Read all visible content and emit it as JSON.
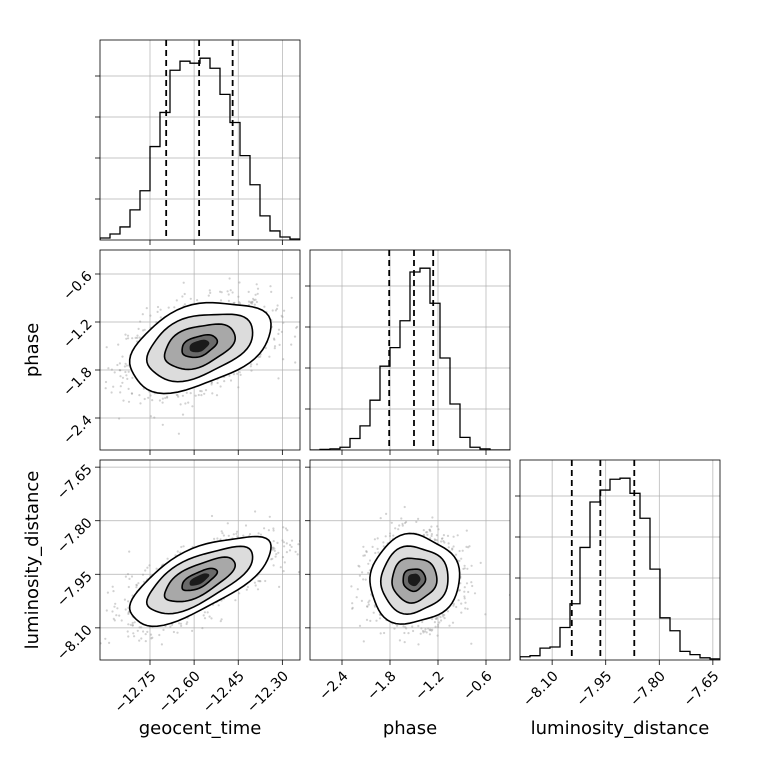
{
  "chart_data": {
    "type": "corner",
    "parameters": [
      "geocent_time",
      "phase",
      "luminosity_distance"
    ],
    "axis_labels": {
      "geocent_time": "geocent_time",
      "phase": "phase",
      "luminosity_distance": "luminosity_distance"
    },
    "ranges": {
      "geocent_time": [
        -12.92,
        -12.24
      ],
      "phase": [
        -2.8,
        -0.3
      ],
      "luminosity_distance": [
        -8.19,
        -7.63
      ]
    },
    "ticks": {
      "geocent_time": [
        -12.75,
        -12.6,
        -12.45,
        -12.3
      ],
      "phase": [
        -2.4,
        -1.8,
        -1.2,
        -0.6
      ],
      "luminosity_distance": [
        -8.1,
        -7.95,
        -7.8,
        -7.65
      ]
    },
    "tick_labels": {
      "geocent_time": [
        "−12.75",
        "−12.60",
        "−12.45",
        "−12.30"
      ],
      "phase": [
        "−2.4",
        "−1.8",
        "−1.2",
        "−0.6"
      ],
      "luminosity_distance": [
        "−8.10",
        "−7.95",
        "−7.80",
        "−7.65"
      ]
    },
    "quantiles": {
      "geocent_time": [
        -12.695,
        -12.583,
        -12.469
      ],
      "phase": [
        -1.81,
        -1.5,
        -1.26
      ],
      "luminosity_distance": [
        -8.045,
        -7.965,
        -7.87
      ]
    },
    "histograms": {
      "geocent_time": {
        "bin_edges": [
          -12.92,
          -12.886,
          -12.852,
          -12.818,
          -12.784,
          -12.75,
          -12.716,
          -12.682,
          -12.648,
          -12.614,
          -12.58,
          -12.546,
          -12.512,
          -12.478,
          -12.444,
          -12.41,
          -12.376,
          -12.342,
          -12.308,
          -12.274,
          -12.24
        ],
        "counts": [
          2,
          6,
          13,
          30,
          49,
          93,
          127,
          169,
          178,
          176,
          181,
          171,
          145,
          117,
          84,
          55,
          24,
          9,
          3,
          1
        ]
      },
      "phase": {
        "bin_edges": [
          -2.8,
          -2.675,
          -2.55,
          -2.425,
          -2.3,
          -2.175,
          -2.05,
          -1.925,
          -1.8,
          -1.675,
          -1.55,
          -1.425,
          -1.3,
          -1.175,
          -1.05,
          -0.925,
          -0.8,
          -0.675,
          -0.55,
          -0.425,
          -0.3
        ],
        "counts": [
          0,
          1,
          2,
          5,
          21,
          44,
          91,
          153,
          187,
          236,
          325,
          332,
          268,
          168,
          84,
          23,
          5,
          2,
          0,
          0
        ]
      },
      "luminosity_distance": {
        "bin_edges": [
          -8.19,
          -8.162,
          -8.134,
          -8.106,
          -8.078,
          -8.05,
          -8.022,
          -7.994,
          -7.966,
          -7.938,
          -7.91,
          -7.882,
          -7.854,
          -7.826,
          -7.798,
          -7.77,
          -7.742,
          -7.714,
          -7.686,
          -7.658,
          -7.63
        ],
        "counts": [
          3,
          4,
          11,
          12,
          30,
          52,
          104,
          146,
          157,
          167,
          168,
          154,
          131,
          84,
          39,
          27,
          8,
          5,
          2,
          1
        ]
      }
    },
    "pairs": [
      {
        "x": "geocent_time",
        "y": "phase",
        "mean": [
          -12.583,
          -1.5
        ],
        "sigma": [
          0.12,
          0.28
        ],
        "correlation": 0.4
      },
      {
        "x": "geocent_time",
        "y": "luminosity_distance",
        "mean": [
          -12.583,
          -7.965
        ],
        "sigma": [
          0.12,
          0.062
        ],
        "correlation": 0.68
      },
      {
        "x": "phase",
        "y": "luminosity_distance",
        "mean": [
          -1.5,
          -7.965
        ],
        "sigma": [
          0.28,
          0.062
        ],
        "correlation": 0.05
      }
    ],
    "contour_levels": [
      0.5,
      1.0,
      1.5,
      2.0
    ],
    "grid": true
  }
}
